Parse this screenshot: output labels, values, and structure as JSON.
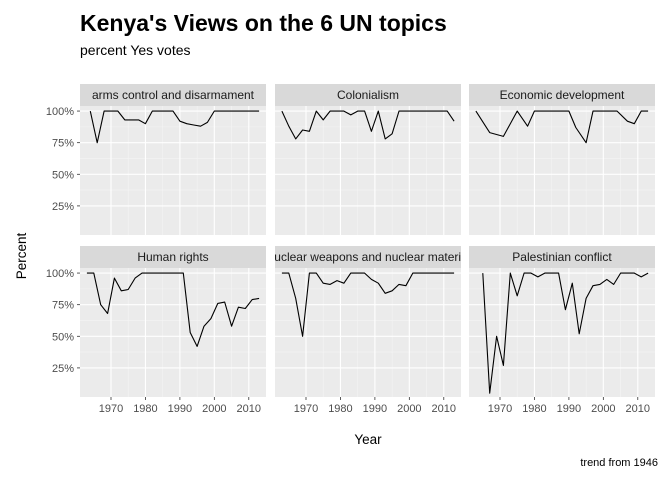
{
  "chart_data": {
    "type": "line",
    "title": "Kenya's Views on the 6 UN topics",
    "subtitle": "percent Yes votes",
    "xlabel": "Year",
    "ylabel": "Percent",
    "caption": "trend from 1946",
    "xlim": [
      1961,
      2015
    ],
    "ylim": [
      0.02,
      1.04
    ],
    "x_ticks": [
      1970,
      1980,
      1990,
      2000,
      2010
    ],
    "x_tick_labels": [
      "1970",
      "1980",
      "1990",
      "2000",
      "2010"
    ],
    "y_ticks": [
      0.25,
      0.5,
      0.75,
      1.0
    ],
    "y_tick_labels": [
      "25%",
      "50%",
      "75%",
      "100%"
    ],
    "grid": true,
    "facets": [
      {
        "name": "arms control and disarmament",
        "x": [
          1964,
          1966,
          1968,
          1970,
          1972,
          1974,
          1976,
          1978,
          1980,
          1982,
          1984,
          1986,
          1988,
          1990,
          1992,
          1994,
          1996,
          1998,
          2000,
          2002,
          2004,
          2006,
          2008,
          2010,
          2012,
          2013
        ],
        "y": [
          1.0,
          0.75,
          1.0,
          1.0,
          1.0,
          0.93,
          0.93,
          0.93,
          0.9,
          1.0,
          1.0,
          1.0,
          1.0,
          0.92,
          0.9,
          0.89,
          0.88,
          0.91,
          1.0,
          1.0,
          1.0,
          1.0,
          1.0,
          1.0,
          1.0,
          1.0
        ]
      },
      {
        "name": "Colonialism",
        "x": [
          1963,
          1965,
          1967,
          1969,
          1971,
          1973,
          1975,
          1977,
          1979,
          1981,
          1983,
          1985,
          1987,
          1989,
          1991,
          1993,
          1995,
          1997,
          1999,
          2001,
          2003,
          2005,
          2007,
          2009,
          2011,
          2013
        ],
        "y": [
          1.0,
          0.88,
          0.78,
          0.85,
          0.84,
          1.0,
          0.93,
          1.0,
          1.0,
          1.0,
          0.97,
          1.0,
          1.0,
          0.84,
          1.0,
          0.78,
          0.82,
          1.0,
          1.0,
          1.0,
          1.0,
          1.0,
          1.0,
          1.0,
          1.0,
          0.92
        ]
      },
      {
        "name": "Economic development",
        "x": [
          1963,
          1967,
          1971,
          1975,
          1978,
          1980,
          1982,
          1986,
          1990,
          1992,
          1995,
          1997,
          2000,
          2004,
          2007,
          2009,
          2011,
          2013
        ],
        "y": [
          1.0,
          0.83,
          0.8,
          1.0,
          0.88,
          1.0,
          1.0,
          1.0,
          1.0,
          0.87,
          0.75,
          1.0,
          1.0,
          1.0,
          0.92,
          0.9,
          1.0,
          1.0
        ]
      },
      {
        "name": "Human rights",
        "x": [
          1963,
          1965,
          1967,
          1969,
          1971,
          1973,
          1975,
          1977,
          1979,
          1981,
          1983,
          1985,
          1987,
          1989,
          1991,
          1993,
          1995,
          1997,
          1999,
          2001,
          2003,
          2005,
          2007,
          2009,
          2011,
          2013
        ],
        "y": [
          1.0,
          1.0,
          0.75,
          0.68,
          0.96,
          0.86,
          0.87,
          0.96,
          1.0,
          1.0,
          1.0,
          1.0,
          1.0,
          1.0,
          1.0,
          0.53,
          0.42,
          0.58,
          0.64,
          0.76,
          0.77,
          0.58,
          0.73,
          0.72,
          0.79,
          0.8
        ]
      },
      {
        "name": "Nuclear weapons and nuclear material",
        "x": [
          1963,
          1965,
          1967,
          1969,
          1971,
          1973,
          1975,
          1977,
          1979,
          1981,
          1983,
          1985,
          1987,
          1989,
          1991,
          1993,
          1995,
          1997,
          1999,
          2001,
          2003,
          2005,
          2007,
          2009,
          2011,
          2013
        ],
        "y": [
          1.0,
          1.0,
          0.8,
          0.5,
          1.0,
          1.0,
          0.92,
          0.91,
          0.94,
          0.92,
          1.0,
          1.0,
          1.0,
          0.95,
          0.92,
          0.84,
          0.86,
          0.91,
          0.9,
          1.0,
          1.0,
          1.0,
          1.0,
          1.0,
          1.0,
          1.0
        ]
      },
      {
        "name": "Palestinian conflict",
        "x": [
          1965,
          1967,
          1969,
          1971,
          1973,
          1975,
          1977,
          1979,
          1981,
          1983,
          1985,
          1987,
          1989,
          1991,
          1993,
          1995,
          1997,
          1999,
          2001,
          2003,
          2005,
          2007,
          2009,
          2011,
          2013
        ],
        "y": [
          1.0,
          0.05,
          0.5,
          0.27,
          1.0,
          0.82,
          1.0,
          1.0,
          0.97,
          1.0,
          1.0,
          1.0,
          0.71,
          0.92,
          0.52,
          0.8,
          0.9,
          0.91,
          0.95,
          0.91,
          1.0,
          1.0,
          1.0,
          0.97,
          1.0
        ]
      }
    ]
  }
}
